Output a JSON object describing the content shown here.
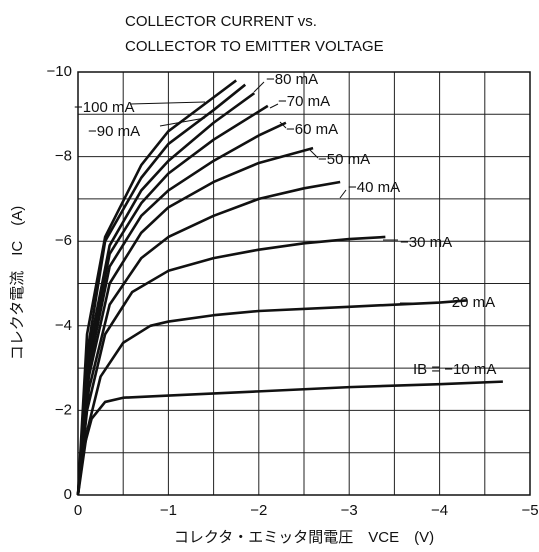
{
  "chart_data": {
    "type": "line",
    "title": [
      "COLLECTOR CURRENT vs.",
      "COLLECTOR TO EMITTER VOLTAGE"
    ],
    "xlabel": "コレクタ・エミッタ間電圧　VCE　(V)",
    "ylabel": "コレクタ電流　IC　(A)",
    "xlim": [
      0,
      -5
    ],
    "ylim": [
      0,
      -10
    ],
    "xticks": [
      0,
      {
        "value": -1,
        "label": "−1"
      },
      {
        "value": -2,
        "label": "−2"
      },
      {
        "value": -3,
        "label": "−3"
      },
      {
        "value": -4,
        "label": "−4"
      },
      {
        "value": -5,
        "label": "−5"
      }
    ],
    "yticks": [
      0,
      {
        "value": -2,
        "label": "−2"
      },
      {
        "value": -4,
        "label": "−4"
      },
      {
        "value": -6,
        "label": "−6"
      },
      {
        "value": -8,
        "label": "−8"
      },
      {
        "value": -10,
        "label": "−10"
      }
    ],
    "xminorticks": [
      -0.5,
      -1.5,
      -2.5,
      -3.5,
      -4.5
    ],
    "yminorticks": [
      -1,
      -3,
      -5,
      -7,
      -9
    ],
    "grid": true,
    "color": "#111111",
    "series": [
      {
        "name": "IB = −10 mA",
        "x": [
          0,
          -0.05,
          -0.15,
          -0.3,
          -0.5,
          -1,
          -2,
          -3,
          -4,
          -4.7
        ],
        "values": [
          0,
          -1,
          -1.8,
          -2.2,
          -2.3,
          -2.35,
          -2.45,
          -2.55,
          -2.62,
          -2.68
        ]
      },
      {
        "name": "−20 mA",
        "x": [
          0,
          -0.1,
          -0.25,
          -0.5,
          -0.8,
          -1,
          -1.5,
          -2,
          -3,
          -4,
          -4.3
        ],
        "values": [
          0,
          -1.5,
          -2.8,
          -3.6,
          -4.0,
          -4.1,
          -4.25,
          -4.35,
          -4.45,
          -4.55,
          -4.6
        ]
      },
      {
        "name": "−30 mA",
        "x": [
          0,
          -0.1,
          -0.3,
          -0.6,
          -1,
          -1.5,
          -2,
          -2.5,
          -3,
          -3.4
        ],
        "values": [
          0,
          -2,
          -3.8,
          -4.8,
          -5.3,
          -5.6,
          -5.8,
          -5.95,
          -6.05,
          -6.1
        ]
      },
      {
        "name": "−40 mA",
        "x": [
          0,
          -0.12,
          -0.35,
          -0.7,
          -1,
          -1.5,
          -2,
          -2.5,
          -2.9
        ],
        "values": [
          0,
          -2.5,
          -4.5,
          -5.6,
          -6.1,
          -6.6,
          -7.0,
          -7.25,
          -7.4
        ]
      },
      {
        "name": "−50 mA",
        "x": [
          0,
          -0.12,
          -0.35,
          -0.7,
          -1,
          -1.5,
          -2,
          -2.6
        ],
        "values": [
          0,
          -2.8,
          -5.0,
          -6.2,
          -6.8,
          -7.4,
          -7.85,
          -8.2
        ]
      },
      {
        "name": "−60 mA",
        "x": [
          0,
          -0.12,
          -0.35,
          -0.7,
          -1,
          -1.5,
          -2,
          -2.3
        ],
        "values": [
          0,
          -3,
          -5.4,
          -6.6,
          -7.2,
          -7.9,
          -8.5,
          -8.8
        ]
      },
      {
        "name": "−70 mA",
        "x": [
          0,
          -0.12,
          -0.35,
          -0.7,
          -1,
          -1.5,
          -2.1
        ],
        "values": [
          0,
          -3.2,
          -5.7,
          -6.9,
          -7.6,
          -8.4,
          -9.2
        ]
      },
      {
        "name": "−80 mA",
        "x": [
          0,
          -0.12,
          -0.35,
          -0.7,
          -1,
          -1.5,
          -1.95
        ],
        "values": [
          0,
          -3.4,
          -5.9,
          -7.2,
          -7.9,
          -8.8,
          -9.5
        ]
      },
      {
        "name": "−90 mA",
        "x": [
          0,
          -0.12,
          -0.3,
          -0.7,
          -1,
          -1.5,
          -1.85
        ],
        "values": [
          0,
          -3.6,
          -6,
          -7.5,
          -8.3,
          -9.1,
          -9.7
        ]
      },
      {
        "name": "−100 mA",
        "x": [
          0,
          -0.1,
          -0.3,
          -0.7,
          -1,
          -1.5,
          -1.75
        ],
        "values": [
          0,
          -3.8,
          -6.1,
          -7.8,
          -8.6,
          -9.4,
          -9.8
        ]
      }
    ]
  }
}
